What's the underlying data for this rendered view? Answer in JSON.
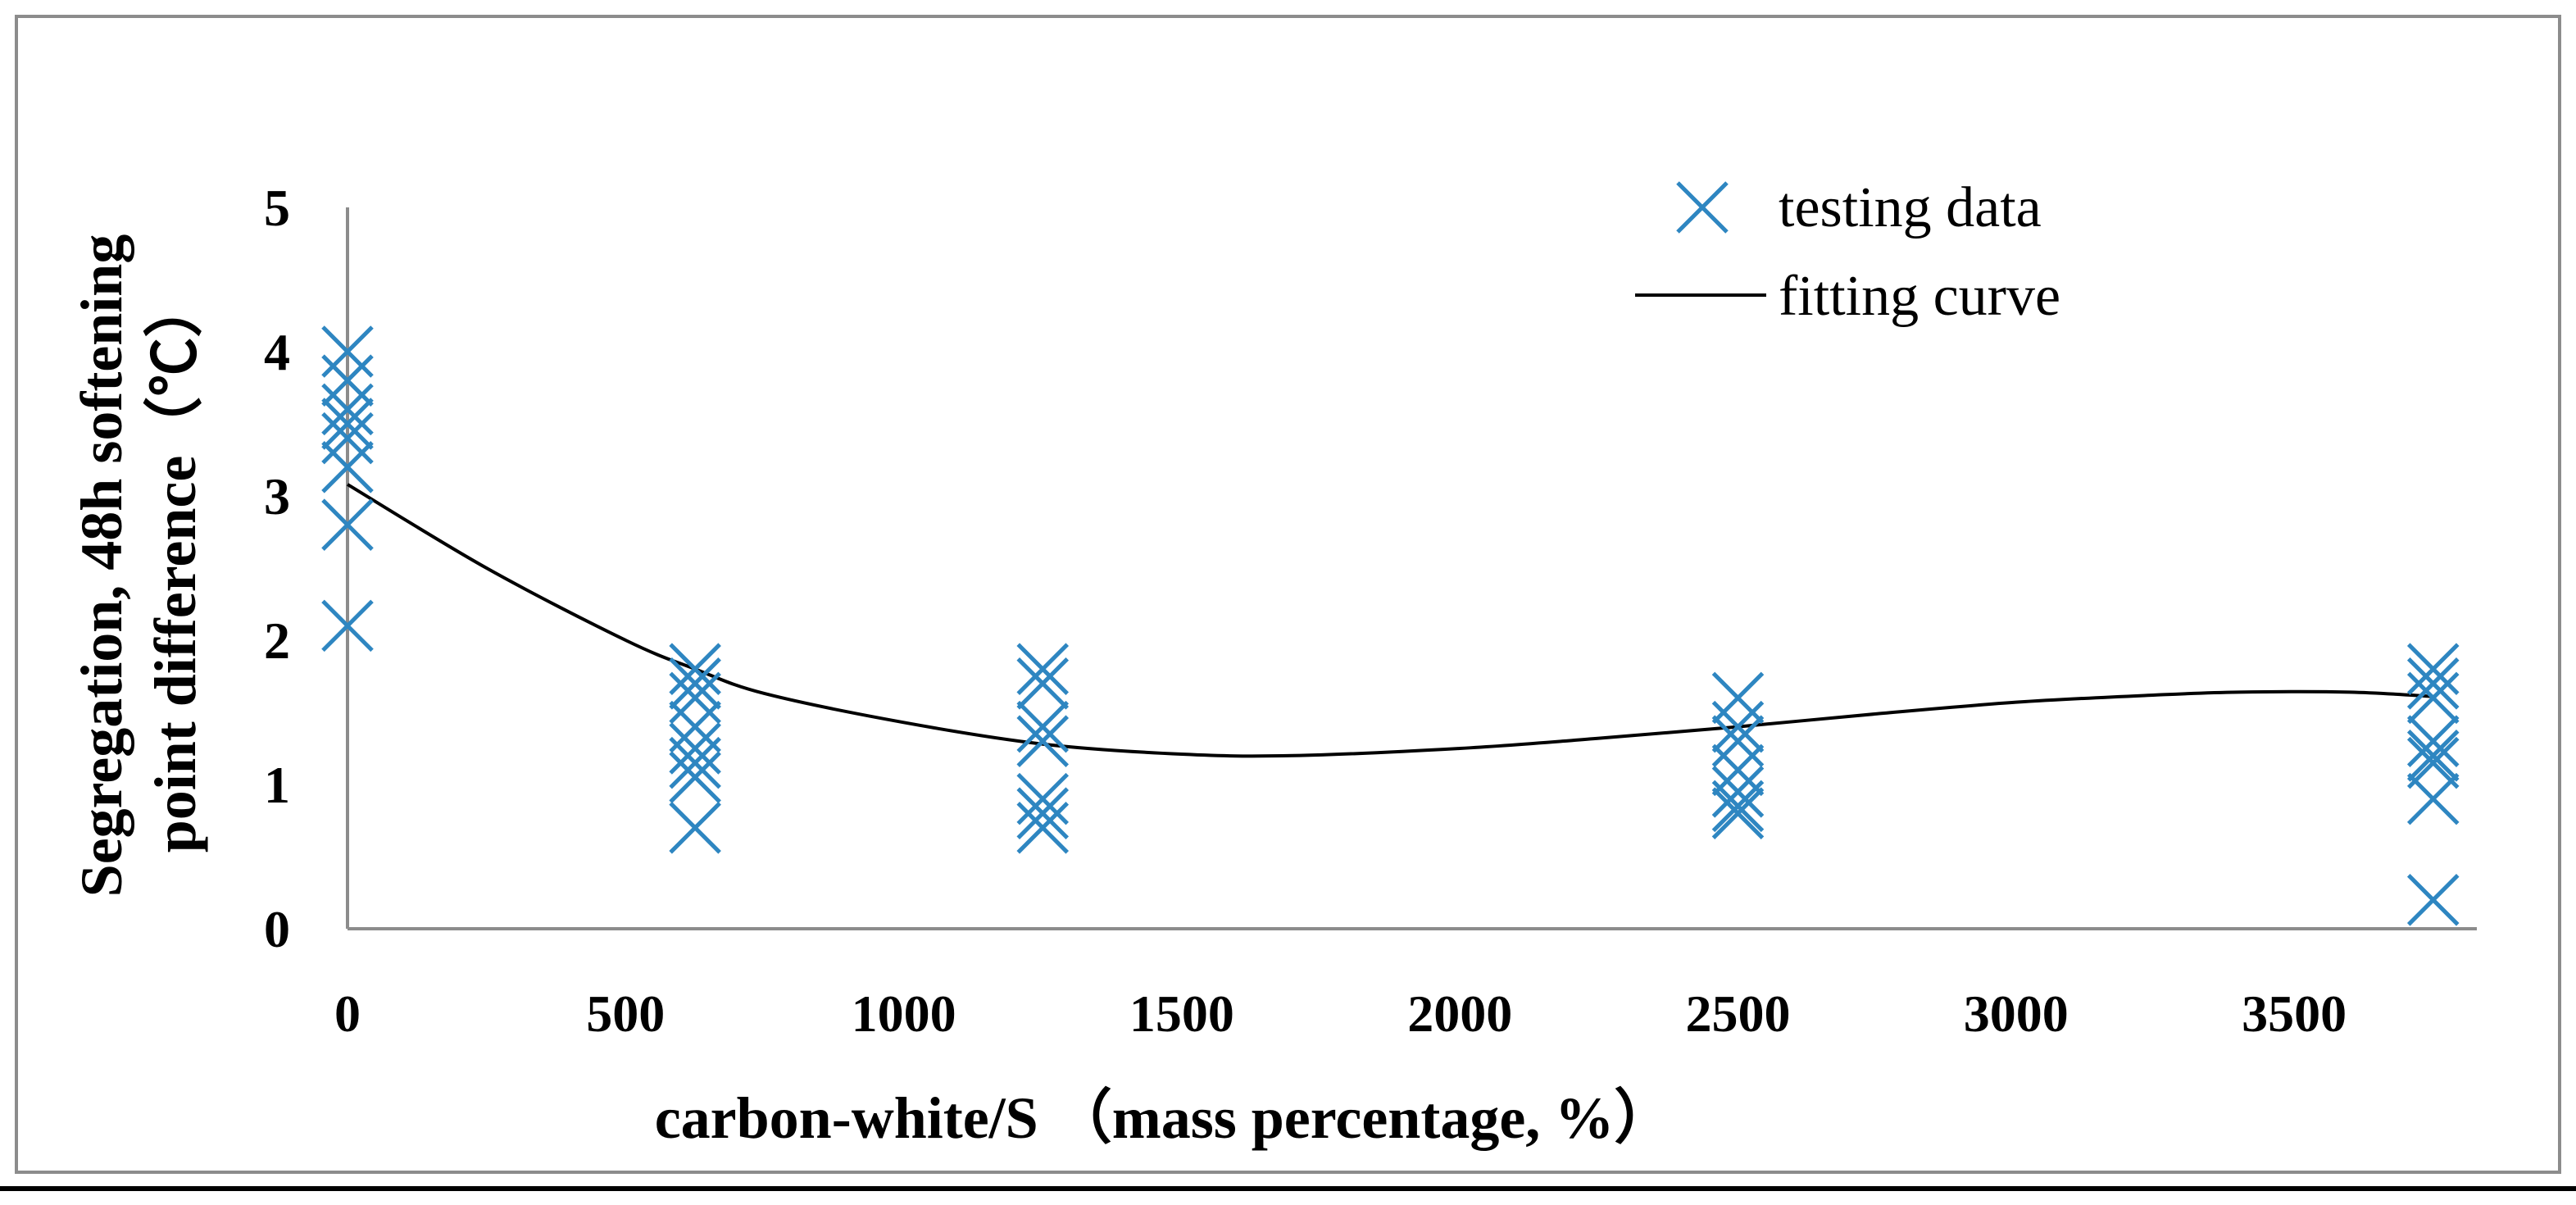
{
  "chart_data": {
    "type": "scatter",
    "title": "",
    "xlabel": "carbon-white/S （mass percentage, %）",
    "ylabel_lines": [
      "Segregation, 48h softening",
      "point difference（℃）"
    ],
    "xlim": [
      0,
      3800
    ],
    "ylim": [
      0,
      5
    ],
    "x_ticks": [
      "0",
      "500",
      "1000",
      "1500",
      "2000",
      "2500",
      "3000",
      "3500"
    ],
    "y_ticks": [
      "0",
      "1",
      "2",
      "3",
      "4",
      "5"
    ],
    "grid": false,
    "legend_position": "top-right",
    "series": [
      {
        "name": "testing data",
        "kind": "markers",
        "marker": "x",
        "color": "#2E86C1",
        "points": [
          [
            0,
            4.0
          ],
          [
            0,
            3.8
          ],
          [
            0,
            3.6
          ],
          [
            0,
            3.5
          ],
          [
            0,
            3.4
          ],
          [
            0,
            3.2
          ],
          [
            0,
            2.8
          ],
          [
            0,
            2.1
          ],
          [
            625,
            1.8
          ],
          [
            625,
            1.7
          ],
          [
            625,
            1.6
          ],
          [
            625,
            1.4
          ],
          [
            625,
            1.25
          ],
          [
            625,
            1.15
          ],
          [
            625,
            1.05
          ],
          [
            625,
            0.7
          ],
          [
            1250,
            1.8
          ],
          [
            1250,
            1.7
          ],
          [
            1250,
            1.4
          ],
          [
            1250,
            1.3
          ],
          [
            1250,
            0.9
          ],
          [
            1250,
            0.8
          ],
          [
            1250,
            0.7
          ],
          [
            2500,
            1.6
          ],
          [
            2500,
            1.4
          ],
          [
            2500,
            1.3
          ],
          [
            2500,
            1.1
          ],
          [
            2500,
            0.95
          ],
          [
            2500,
            0.85
          ],
          [
            2500,
            0.8
          ],
          [
            3750,
            1.8
          ],
          [
            3750,
            1.7
          ],
          [
            3750,
            1.6
          ],
          [
            3750,
            1.3
          ],
          [
            3750,
            1.2
          ],
          [
            3750,
            1.15
          ],
          [
            3750,
            0.9
          ],
          [
            3750,
            0.2
          ]
        ]
      },
      {
        "name": "fitting curve",
        "kind": "line",
        "color": "#000000",
        "x": [
          0,
          250,
          500,
          625,
          750,
          1000,
          1250,
          1500,
          1700,
          2000,
          2250,
          2500,
          2750,
          3000,
          3250,
          3400,
          3600,
          3750
        ],
        "y": [
          3.08,
          2.5,
          2.0,
          1.8,
          1.63,
          1.43,
          1.28,
          1.21,
          1.2,
          1.25,
          1.32,
          1.4,
          1.49,
          1.57,
          1.62,
          1.64,
          1.64,
          1.61
        ]
      }
    ]
  }
}
